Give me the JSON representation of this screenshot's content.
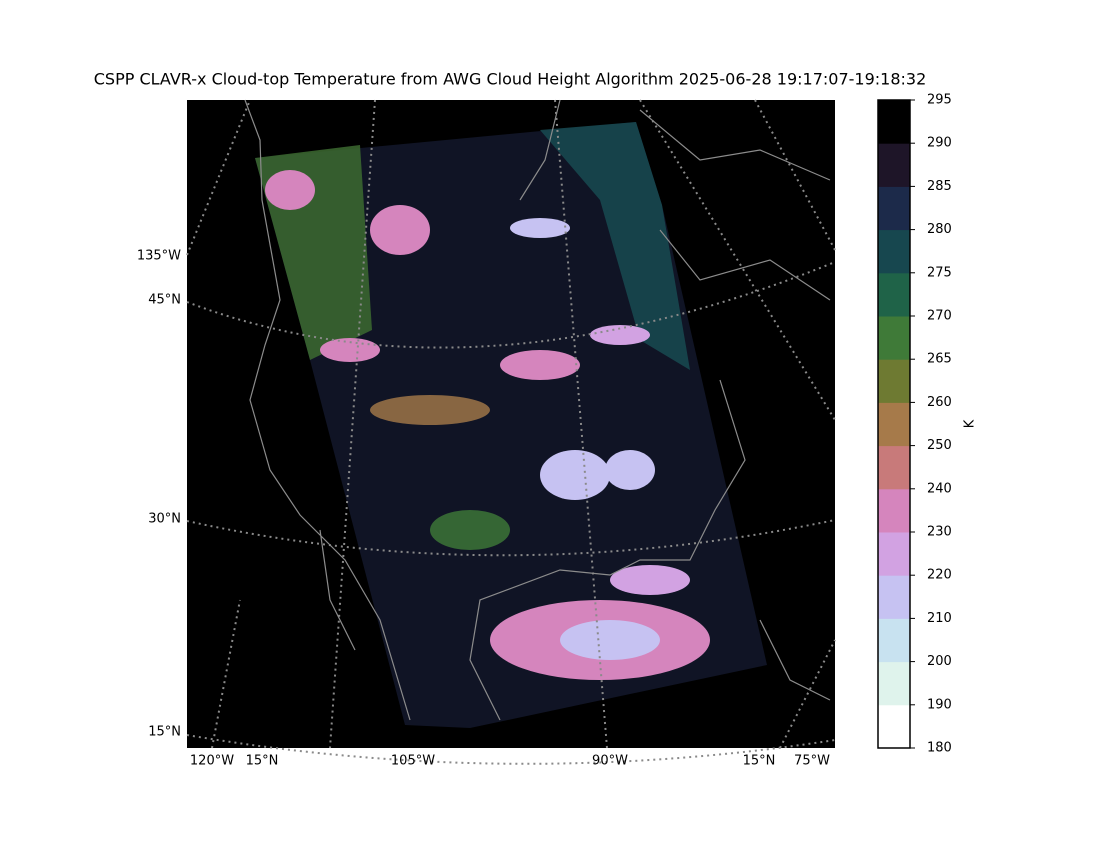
{
  "title": "CSPP CLAVR-x Cloud-top Temperature from AWG Cloud Height Algorithm 2025-06-28 19:17:07-19:18:32",
  "map_labels": {
    "left": [
      "135°W",
      "45°N",
      "30°N",
      "15°N"
    ],
    "bottom": [
      "120°W",
      "15°N",
      "105°W",
      "90°W",
      "15°N",
      "75°W"
    ]
  },
  "colorbar": {
    "label": "K",
    "ticks": [
      180,
      190,
      200,
      210,
      220,
      230,
      240,
      250,
      260,
      265,
      270,
      275,
      280,
      285,
      290,
      295
    ],
    "colors": [
      "#ffffff",
      "#dff3ec",
      "#c8e2f0",
      "#c6c2f2",
      "#d2a2e2",
      "#d585bd",
      "#c87a7a",
      "#a67a4a",
      "#6e7a32",
      "#3f7a38",
      "#1f6348",
      "#17474f",
      "#1c2a4a",
      "#1e1528",
      "#000000"
    ]
  }
}
